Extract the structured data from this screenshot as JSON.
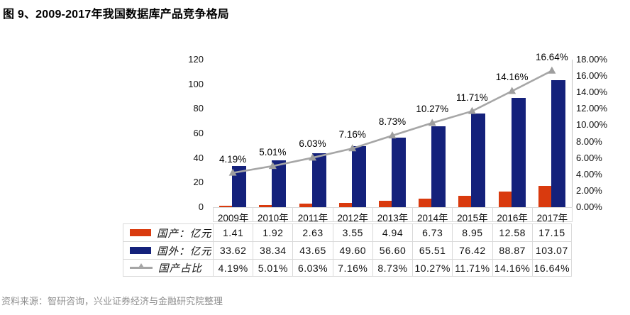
{
  "figure": {
    "title": "图 9、2009-2017年我国数据库产品竞争格局",
    "source": "资料来源：智研咨询，兴业证券经济与金融研究院整理"
  },
  "colors": {
    "domestic_bar": "#d93a0e",
    "foreign_bar": "#14217b",
    "share_line": "#a6a6a6",
    "table_border": "#d9d9d9",
    "right_axis_line": "#bfbfbf",
    "source_text": "#8f8f8f"
  },
  "chart_data": {
    "type": "combo-bar-line",
    "categories": [
      "2009年",
      "2010年",
      "2011年",
      "2012年",
      "2013年",
      "2014年",
      "2015年",
      "2016年",
      "2017年"
    ],
    "series": [
      {
        "name": "国产：亿元",
        "chart": "bar",
        "axis": "left",
        "color": "#d93a0e",
        "values": [
          1.41,
          1.92,
          2.63,
          3.55,
          4.94,
          6.73,
          8.95,
          12.58,
          17.15
        ]
      },
      {
        "name": "国外：亿元",
        "chart": "bar",
        "axis": "left",
        "color": "#14217b",
        "values": [
          33.62,
          38.34,
          43.65,
          49.6,
          56.6,
          65.51,
          76.42,
          88.87,
          103.07
        ]
      },
      {
        "name": "国产占比",
        "chart": "line",
        "axis": "right",
        "color": "#a6a6a6",
        "marker": "triangle-up",
        "values": [
          4.19,
          5.01,
          6.03,
          7.16,
          8.73,
          10.27,
          11.71,
          14.16,
          16.64
        ],
        "point_labels": [
          "4.19%",
          "5.01%",
          "6.03%",
          "7.16%",
          "8.73%",
          "10.27%",
          "11.71%",
          "14.16%",
          "16.64%"
        ]
      }
    ],
    "left_axis": {
      "min": 0,
      "max": 120,
      "step": 20,
      "ticks": [
        "120",
        "100",
        "80",
        "60",
        "40",
        "20",
        "0"
      ]
    },
    "right_axis": {
      "min": 0,
      "max": 18,
      "step": 2,
      "ticks": [
        "18.00%",
        "16.00%",
        "14.00%",
        "12.00%",
        "10.00%",
        "8.00%",
        "6.00%",
        "4.00%",
        "2.00%",
        "0.00%"
      ]
    },
    "grid": false,
    "legend_position": "table-below"
  },
  "table": {
    "rows": [
      {
        "label": "国产：亿元",
        "marker": "bar",
        "color": "#d93a0e",
        "values": [
          "1.41",
          "1.92",
          "2.63",
          "3.55",
          "4.94",
          "6.73",
          "8.95",
          "12.58",
          "17.15"
        ]
      },
      {
        "label": "国外：亿元",
        "marker": "bar",
        "color": "#14217b",
        "values": [
          "33.62",
          "38.34",
          "43.65",
          "49.60",
          "56.60",
          "65.51",
          "76.42",
          "88.87",
          "103.07"
        ]
      },
      {
        "label": "国产占比",
        "marker": "line",
        "color": "#a6a6a6",
        "values": [
          "4.19%",
          "5.01%",
          "6.03%",
          "7.16%",
          "8.73%",
          "10.27%",
          "11.71%",
          "14.16%",
          "16.64%"
        ]
      }
    ]
  }
}
